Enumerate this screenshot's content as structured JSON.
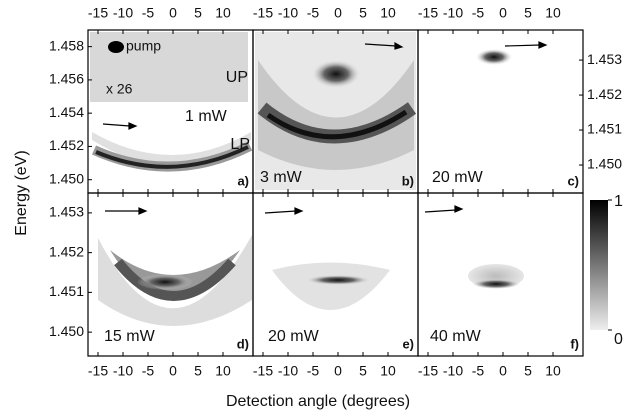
{
  "y_label": "Energy (eV)",
  "x_label": "Detection angle (degrees)",
  "chart_data": [
    {
      "type": "heatmap",
      "panel": "a)",
      "power": "1 mW",
      "annotations": [
        "pump",
        "x 26",
        "UP",
        "LP"
      ],
      "xlim": [
        -17,
        16
      ],
      "xticks": [
        -15,
        -10,
        -5,
        0,
        5,
        10
      ],
      "ylim": [
        1.4492,
        1.459
      ],
      "yticks": [
        {
          "value": 1.45,
          "label": "1.450"
        },
        1.452,
        1.454,
        1.456,
        1.458
      ]
    },
    {
      "type": "heatmap",
      "panel": "b)",
      "power": "3 mW",
      "xlim": [
        -17,
        16
      ],
      "xticks": [
        -15,
        -10,
        -5,
        0,
        5,
        10
      ]
    },
    {
      "type": "heatmap",
      "panel": "c)",
      "power": "20 mW",
      "xlim": [
        -17,
        16
      ],
      "xticks": [
        -15,
        -10,
        -5,
        0,
        5,
        10
      ],
      "ylim": [
        1.4492,
        1.45386
      ],
      "yticks": [
        {
          "value": 1.45,
          "label": "1.450"
        },
        1.451,
        1.452,
        1.453
      ]
    },
    {
      "type": "heatmap",
      "panel": "d)",
      "power": "15 mW",
      "xlim": [
        -17,
        16
      ],
      "xticks": [
        -15,
        -10,
        -5,
        0,
        5,
        10
      ],
      "ylim": [
        1.4494,
        1.4535
      ],
      "yticks": [
        {
          "value": 1.45,
          "label": "1.450"
        },
        1.451,
        1.452,
        1.453
      ]
    },
    {
      "type": "heatmap",
      "panel": "e)",
      "power": "20 mW",
      "xlim": [
        -17,
        16
      ],
      "xticks": [
        -15,
        -10,
        -5,
        0,
        5,
        10
      ]
    },
    {
      "type": "heatmap",
      "panel": "f)",
      "power": "40 mW",
      "xlim": [
        -17,
        16
      ],
      "xticks": [
        -15,
        -10,
        -5,
        0,
        5,
        10
      ]
    }
  ],
  "colorbar": {
    "ylim": [
      0,
      1
    ],
    "yticks": [
      0,
      1
    ]
  }
}
